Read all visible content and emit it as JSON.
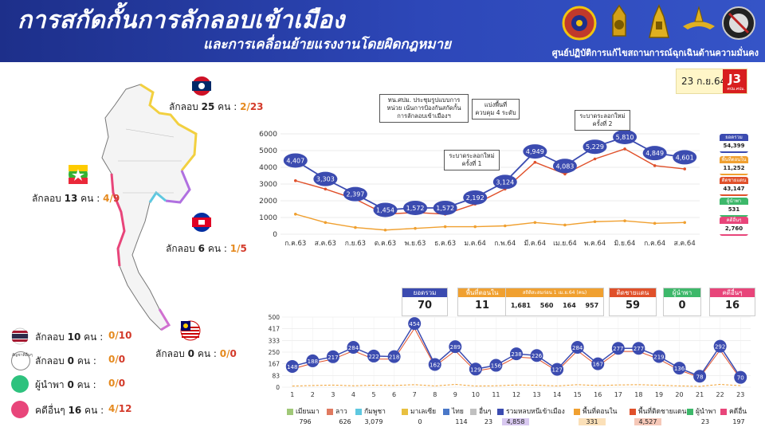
{
  "header": {
    "title": "การสกัดกั้นการลักลอบเข้าเมือง",
    "subtitle": "และการเคลื่อนย้ายแรงงานโดยผิดกฎหมาย",
    "org": "ศูนย์ปฏิบัติการแก้ไขสถานการณ์ฉุกเฉินด้านความมั่นคง"
  },
  "date": {
    "text": "23 ก.ย.64",
    "badge": "J3",
    "badge_sub": "ศปม.ศปม."
  },
  "map": {
    "laos": {
      "text": "ลักลอบ",
      "num": "25",
      "unit": "คน :",
      "a": "2",
      "b": "23"
    },
    "myanmar": {
      "text": "ลักลอบ",
      "num": "13",
      "unit": "คน :",
      "a": "4",
      "b": "9"
    },
    "cambodia": {
      "text": "ลักลอบ",
      "num": "6",
      "unit": "คน :",
      "a": "1",
      "b": "5"
    },
    "malaysia": {
      "text": "ลักลอบ",
      "num": "0",
      "unit": "คน :",
      "a": "0",
      "b": "0"
    }
  },
  "legend_left": [
    {
      "label": "ลักลอบ",
      "num": "10",
      "unit": "คน :",
      "a": "0",
      "b": "10",
      "color": "#2a3f9b",
      "icon": "thai-flag-icon"
    },
    {
      "label": "ลักลอบ",
      "num": "0",
      "unit": "คน :",
      "a": "0",
      "b": "0",
      "color": "#888888",
      "icon": "other-nationality-icon",
      "icon_text": "สัญชาติอื่นๆ"
    },
    {
      "label": "ผู้นำพา",
      "num": "0",
      "unit": "คน :",
      "a": "0",
      "b": "0",
      "color": "#2ec27e",
      "icon": "green-dot-icon"
    },
    {
      "label": "คดีอื่นๆ",
      "num": "16",
      "unit": "คน :",
      "a": "4",
      "b": "12",
      "color": "#e8457a",
      "icon": "pink-dot-icon"
    }
  ],
  "notes": [
    {
      "text": "ทน.ศปม. ประชุมรูปแบบการหน่วย เน้นการป้องกันสกัดกั้น การลักลอบเข้าเมืองฯ"
    },
    {
      "text": "แบ่งพื้นที่ควบคุม 4 ระดับ"
    },
    {
      "text": "ระบาดระลอกใหม่ ครั้งที่ 1"
    },
    {
      "text": "ระบาดระลอกใหม่ ครั้งที่ 2"
    }
  ],
  "side_boxes": [
    {
      "label": "ยอดรวม",
      "value": "54,399",
      "color": "#3b4bb0"
    },
    {
      "label": "พื้นที่ตอนใน",
      "value": "11,252",
      "color": "#f0a030"
    },
    {
      "label": "ติดชายแดน",
      "value": "43,147",
      "color": "#e0502a"
    },
    {
      "label": "ผู้นำพา",
      "value": "531",
      "color": "#3db86a"
    },
    {
      "label": "คดีอื่นๆ",
      "value": "2,760",
      "color": "#e8457a"
    }
  ],
  "cards": [
    {
      "label": "ยอดรวม",
      "value": "70",
      "color": "#3b4bb0"
    },
    {
      "label": "พื้นที่ตอนใน",
      "value": "11",
      "color": "#f0a030"
    },
    {
      "label": "สถิติสะสมก่อน 1 เม.ย.64 (คน)",
      "v1": "1,681",
      "v2": "560",
      "v3": "164",
      "v4": "957",
      "color": "#f0a030"
    },
    {
      "label": "ติดชายแดน",
      "value": "59",
      "color": "#e0502a"
    },
    {
      "label": "ผู้นำพา",
      "value": "0",
      "color": "#3db86a"
    },
    {
      "label": "คดีอื่นๆ",
      "value": "16",
      "color": "#e8457a"
    }
  ],
  "bottom_legend": [
    {
      "label": "เมียนมา",
      "total": "796",
      "color": "#a0c878"
    },
    {
      "label": "ลาว",
      "total": "626",
      "color": "#e07a60"
    },
    {
      "label": "กัมพูชา",
      "total": "3,079",
      "color": "#5ec8e0"
    },
    {
      "label": "มาเลเซีย",
      "total": "0",
      "color": "#e8c040"
    },
    {
      "label": "ไทย",
      "total": "114",
      "color": "#4a78c8"
    },
    {
      "label": "อื่นๆ",
      "total": "23",
      "color": "#c0c0c0"
    },
    {
      "label": "รวมหลบหนีเข้าเมือง",
      "total": "4,858",
      "color": "#3b4bb0"
    },
    {
      "label": "พื้นที่ตอนใน",
      "total": "331",
      "color": "#f0a030"
    },
    {
      "label": "พื้นที่ติดชายแดน",
      "total": "4,527",
      "color": "#e0502a"
    },
    {
      "label": "ผู้นำพา",
      "total": "23",
      "color": "#3db86a"
    },
    {
      "label": "คดีอื่น",
      "total": "197",
      "color": "#e8457a"
    }
  ],
  "chart_data": [
    {
      "type": "line",
      "categories": [
        "ก.ค.63",
        "ส.ค.63",
        "ก.ย.63",
        "ต.ค.63",
        "พ.ย.63",
        "ธ.ค.63",
        "ม.ค.64",
        "ก.พ.64",
        "มี.ค.64",
        "เม.ย.64",
        "พ.ค.64",
        "มิ.ย.64",
        "ก.ค.64",
        "ส.ค.64"
      ],
      "ylim": [
        0,
        6000
      ],
      "yticks": [
        0,
        1000,
        2000,
        3000,
        4000,
        5000,
        6000
      ],
      "grid": true,
      "series": [
        {
          "name": "ยอดรวม",
          "values": [
            4407,
            3303,
            2397,
            1454,
            1572,
            1572,
            2192,
            3124,
            4949,
            4083,
            5229,
            5810,
            4849,
            4601
          ],
          "color": "#3b4bb0",
          "labels": [
            "4,407",
            "3,303",
            "2,397",
            "1,454",
            "1,572",
            "1,572",
            "2,192",
            "3,124",
            "4,949",
            "4,083",
            "5,229",
            "5,810",
            "4,849",
            "4,601"
          ]
        },
        {
          "name": "ติดชายแดน",
          "values": [
            3200,
            2700,
            2100,
            1200,
            1300,
            1200,
            1800,
            2700,
            4300,
            3600,
            4500,
            5100,
            4100,
            3900
          ],
          "color": "#e0502a"
        },
        {
          "name": "พื้นที่ตอนใน",
          "values": [
            1200,
            700,
            400,
            250,
            350,
            450,
            450,
            500,
            700,
            550,
            750,
            800,
            650,
            700
          ],
          "color": "#f0a030"
        }
      ]
    },
    {
      "type": "line",
      "categories": [
        "1",
        "2",
        "3",
        "4",
        "5",
        "6",
        "7",
        "8",
        "9",
        "10",
        "11",
        "12",
        "13",
        "14",
        "15",
        "16",
        "17",
        "18",
        "19",
        "20",
        "21",
        "22",
        "23"
      ],
      "ylim": [
        0,
        500
      ],
      "yticks": [
        0,
        83,
        167,
        250,
        333,
        417,
        500
      ],
      "grid": true,
      "series": [
        {
          "name": "รวมหลบหนีเข้าเมือง",
          "values": [
            148,
            188,
            217,
            284,
            222,
            218,
            454,
            162,
            289,
            129,
            156,
            238,
            226,
            127,
            284,
            167,
            277,
            277,
            219,
            136,
            78,
            292,
            70
          ],
          "color": "#3b4bb0"
        },
        {
          "name": "พื้นที่ตอนใน",
          "values": [
            8,
            12,
            15,
            10,
            14,
            12,
            18,
            9,
            20,
            8,
            10,
            16,
            14,
            9,
            18,
            12,
            16,
            18,
            14,
            9,
            6,
            20,
            11
          ],
          "color": "#f0a030"
        },
        {
          "name": "พื้นที่ติดชายแดน",
          "values": [
            130,
            170,
            200,
            260,
            200,
            200,
            420,
            150,
            260,
            115,
            140,
            215,
            205,
            115,
            260,
            150,
            255,
            255,
            200,
            122,
            70,
            265,
            59
          ],
          "color": "#e0502a"
        }
      ]
    }
  ]
}
